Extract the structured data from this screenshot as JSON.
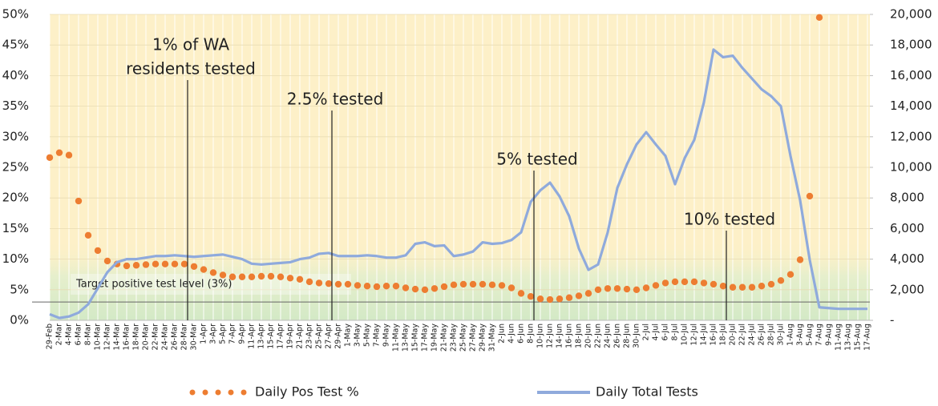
{
  "chart_data": {
    "type": "line",
    "categories": [
      "29-Feb",
      "2-Mar",
      "4-Mar",
      "6-Mar",
      "8-Mar",
      "10-Mar",
      "12-Mar",
      "14-Mar",
      "16-Mar",
      "18-Mar",
      "20-Mar",
      "22-Mar",
      "24-Mar",
      "26-Mar",
      "28-Mar",
      "30-Mar",
      "1-Apr",
      "3-Apr",
      "5-Apr",
      "7-Apr",
      "9-Apr",
      "11-Apr",
      "13-Apr",
      "15-Apr",
      "17-Apr",
      "19-Apr",
      "21-Apr",
      "23-Apr",
      "25-Apr",
      "27-Apr",
      "29-Apr",
      "1-May",
      "3-May",
      "5-May",
      "7-May",
      "9-May",
      "11-May",
      "13-May",
      "15-May",
      "17-May",
      "19-May",
      "21-May",
      "23-May",
      "25-May",
      "27-May",
      "29-May",
      "31-May",
      "2-Jun",
      "4-Jun",
      "6-Jun",
      "8-Jun",
      "10-Jun",
      "12-Jun",
      "14-Jun",
      "16-Jun",
      "18-Jun",
      "20-Jun",
      "22-Jun",
      "24-Jun",
      "26-Jun",
      "28-Jun",
      "30-Jun",
      "2-Jul",
      "4-Jul",
      "6-Jul",
      "8-Jul",
      "10-Jul",
      "12-Jul",
      "14-Jul",
      "16-Jul",
      "18-Jul",
      "20-Jul",
      "22-Jul",
      "24-Jul",
      "26-Jul",
      "28-Jul",
      "30-Jul",
      "1-Aug",
      "3-Aug",
      "5-Aug",
      "7-Aug",
      "9-Aug",
      "11-Aug",
      "13-Aug",
      "15-Aug",
      "17-Aug"
    ],
    "series": [
      {
        "name": "Daily Pos Test %",
        "color": "#ed7d31",
        "style": "dots",
        "axis": "y",
        "values": [
          26.6,
          27.4,
          27.0,
          19.5,
          13.9,
          11.4,
          9.7,
          9.2,
          8.9,
          9.0,
          9.1,
          9.2,
          9.2,
          9.2,
          9.2,
          8.8,
          8.3,
          7.8,
          7.4,
          7.1,
          7.1,
          7.1,
          7.2,
          7.2,
          7.1,
          6.9,
          6.7,
          6.3,
          6.1,
          6.0,
          5.9,
          5.9,
          5.7,
          5.6,
          5.5,
          5.6,
          5.6,
          5.3,
          5.1,
          5.0,
          5.2,
          5.5,
          5.8,
          5.9,
          5.9,
          5.9,
          5.8,
          5.7,
          5.3,
          4.4,
          3.9,
          3.5,
          3.4,
          3.5,
          3.7,
          4.0,
          4.4,
          5.0,
          5.2,
          5.2,
          5.1,
          5.0,
          5.3,
          5.7,
          6.1,
          6.3,
          6.3,
          6.3,
          6.1,
          5.9,
          5.6,
          5.4,
          5.4,
          5.4,
          5.6,
          5.9,
          6.5,
          7.5,
          9.9,
          20.3,
          49.5,
          null,
          null,
          null,
          null,
          null
        ]
      },
      {
        "name": "Daily Total Tests",
        "color": "#8faadc",
        "style": "line",
        "axis": "y2",
        "values": [
          400,
          150,
          250,
          500,
          1050,
          2100,
          3150,
          3800,
          4000,
          4000,
          4100,
          4200,
          4200,
          4250,
          4200,
          4150,
          4200,
          4250,
          4300,
          4150,
          4000,
          3700,
          3650,
          3700,
          3750,
          3800,
          4000,
          4100,
          4350,
          4400,
          4200,
          4200,
          4200,
          4250,
          4200,
          4100,
          4100,
          4250,
          5000,
          5100,
          4850,
          4900,
          4200,
          4300,
          4500,
          5100,
          5000,
          5050,
          5250,
          5750,
          7750,
          8500,
          9000,
          8100,
          6800,
          4700,
          3300,
          3650,
          5750,
          8650,
          10200,
          11500,
          12300,
          11500,
          10750,
          8900,
          10600,
          11800,
          14250,
          17700,
          17200,
          17300,
          16500,
          15800,
          15100,
          14650,
          14000,
          10750,
          7850,
          3950,
          850,
          800,
          750,
          750,
          750,
          750
        ]
      }
    ],
    "ylim": [
      0,
      50
    ],
    "yticks": [
      {
        "value": 0,
        "label": "0%"
      },
      {
        "value": 5,
        "label": "5%"
      },
      {
        "value": 10,
        "label": "10%"
      },
      {
        "value": 15,
        "label": "15%"
      },
      {
        "value": 20,
        "label": "20%"
      },
      {
        "value": 25,
        "label": "25%"
      },
      {
        "value": 30,
        "label": "30%"
      },
      {
        "value": 35,
        "label": "35%"
      },
      {
        "value": 40,
        "label": "40%"
      },
      {
        "value": 45,
        "label": "45%"
      },
      {
        "value": 50,
        "label": "50%"
      }
    ],
    "y2lim": [
      0,
      20000
    ],
    "y2ticks": [
      {
        "value": 0,
        "label": "-"
      },
      {
        "value": 2000,
        "label": "2,000"
      },
      {
        "value": 4000,
        "label": "4,000"
      },
      {
        "value": 6000,
        "label": "6,000"
      },
      {
        "value": 8000,
        "label": "8,000"
      },
      {
        "value": 10000,
        "label": "10,000"
      },
      {
        "value": 12000,
        "label": "12,000"
      },
      {
        "value": 14000,
        "label": "14,000"
      },
      {
        "value": 16000,
        "label": "16,000"
      },
      {
        "value": 18000,
        "label": "18,000"
      },
      {
        "value": 20000,
        "label": "20,000"
      }
    ],
    "grid": true,
    "legend": "bottom",
    "target": {
      "value": 3,
      "label": "Target positive test level (3%)"
    },
    "annotations": [
      {
        "lines": [
          "1% of WA",
          "residents tested"
        ],
        "x": "28-Mar"
      },
      {
        "lines": [
          "2.5% tested"
        ],
        "x": "27-Apr"
      },
      {
        "lines": [
          "5% tested"
        ],
        "x": "8-Jun"
      },
      {
        "lines": [
          "10% tested"
        ],
        "x": "18-Jul"
      }
    ]
  }
}
